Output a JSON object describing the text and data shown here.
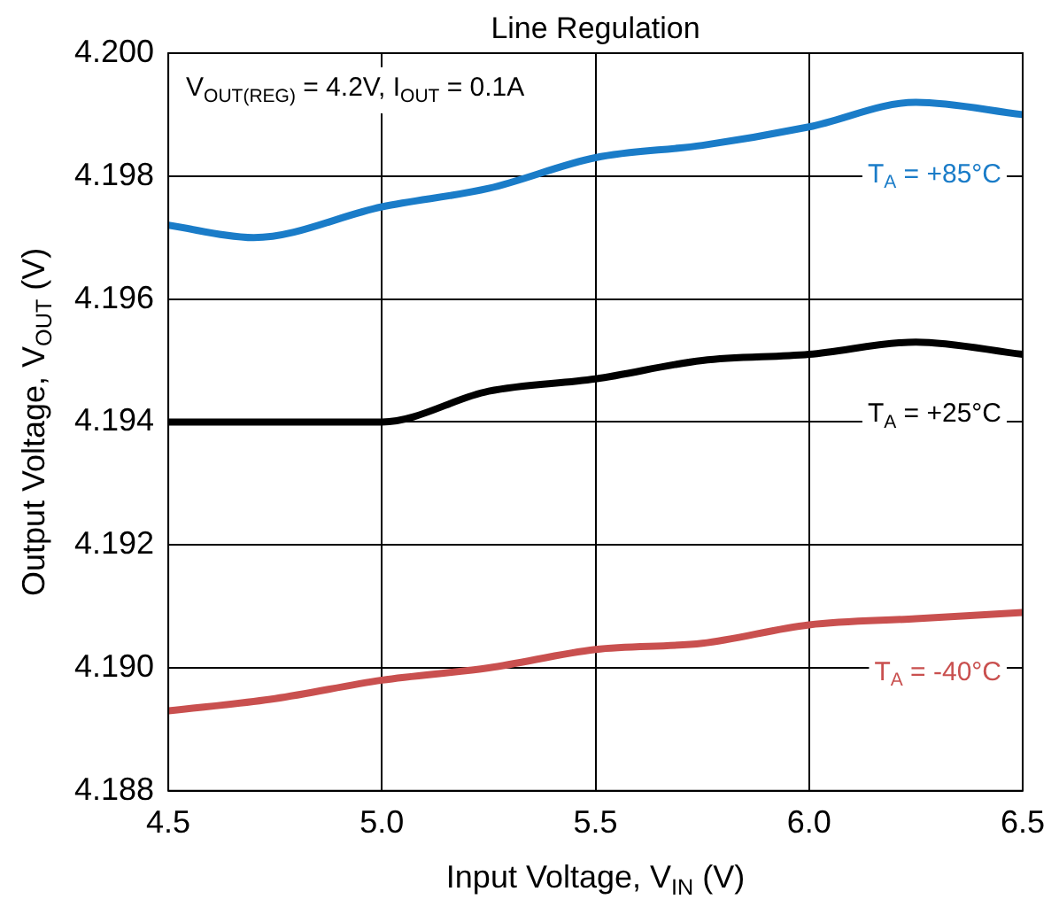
{
  "chart_data": {
    "type": "line",
    "title": "Line Regulation",
    "xlabel": "Input Voltage, V$_{IN}$ (V)",
    "ylabel": "Output Voltage, V$_{OUT}$ (V)",
    "annotations": [
      "V$_{OUT(REG)}$ = 4.2V, I$_{OUT}$ = 0.1A"
    ],
    "xlim": [
      4.5,
      6.5
    ],
    "xticks": [
      {
        "value": 4.5,
        "label": "4.5"
      },
      {
        "value": 5,
        "label": "5.0"
      },
      {
        "value": 5.5,
        "label": "5.5"
      },
      {
        "value": 6,
        "label": "6.0"
      },
      {
        "value": 6.5,
        "label": "6.5"
      }
    ],
    "ylim": [
      4.188,
      4.2
    ],
    "yticks": [
      {
        "value": 4.188,
        "label": "4.188"
      },
      {
        "value": 4.19,
        "label": "4.190"
      },
      {
        "value": 4.192,
        "label": "4.192"
      },
      {
        "value": 4.194,
        "label": "4.194"
      },
      {
        "value": 4.196,
        "label": "4.196"
      },
      {
        "value": 4.198,
        "label": "4.198"
      },
      {
        "value": 4.2,
        "label": "4.200"
      }
    ],
    "grid": true,
    "legend": false,
    "marker": "none",
    "line_style": "solid",
    "series": [
      {
        "name": "T$_{A}$ = +85°C",
        "color": "#1a7cc8",
        "x": [
          4.5,
          4.7,
          5.0,
          5.25,
          5.5,
          5.75,
          6.0,
          6.25,
          6.5
        ],
        "values": [
          4.1972,
          4.197,
          4.1975,
          4.1978,
          4.1983,
          4.1985,
          4.1988,
          4.1992,
          4.199
        ]
      },
      {
        "name": "T$_{A}$ = +25°C",
        "color": "#000000",
        "x": [
          4.5,
          4.75,
          5.0,
          5.25,
          5.5,
          5.75,
          6.0,
          6.25,
          6.5
        ],
        "values": [
          4.194,
          4.194,
          4.194,
          4.1945,
          4.1947,
          4.195,
          4.1951,
          4.1953,
          4.1951
        ]
      },
      {
        "name": "T$_{A}$ = -40°C",
        "color": "#c9504f",
        "x": [
          4.5,
          4.75,
          5.0,
          5.25,
          5.5,
          5.75,
          6.0,
          6.25,
          6.5
        ],
        "values": [
          4.1893,
          4.1895,
          4.1898,
          4.19,
          4.1903,
          4.1904,
          4.1907,
          4.1908,
          4.1909
        ]
      }
    ]
  }
}
